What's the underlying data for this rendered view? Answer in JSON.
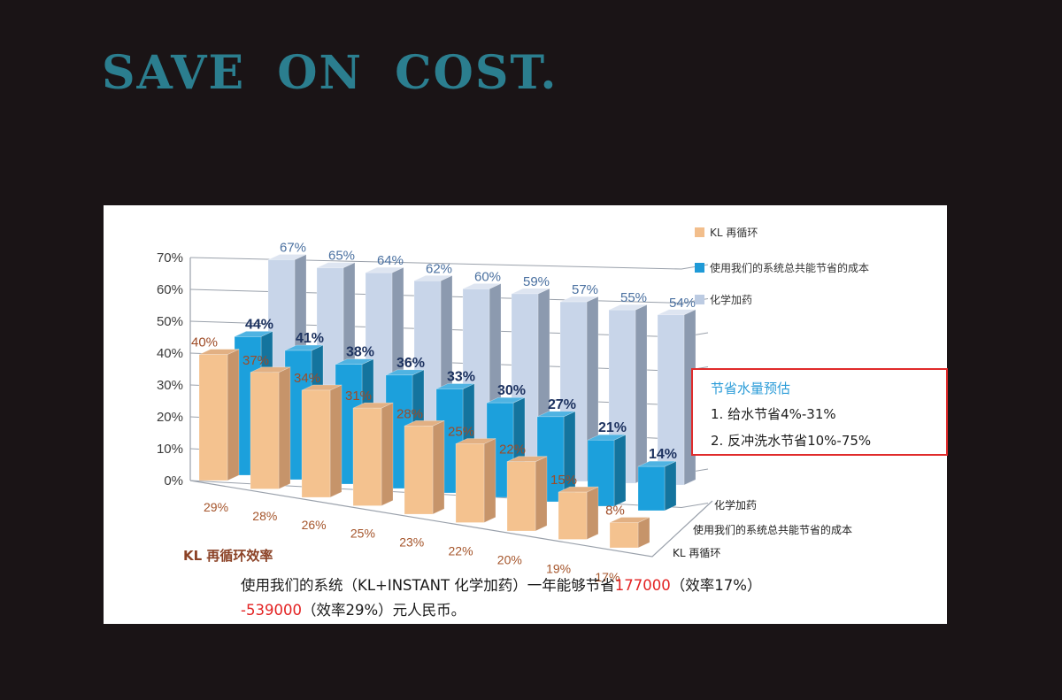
{
  "title": "SAVE ON COST.",
  "legend": {
    "items": [
      {
        "label": "KL 再循环",
        "color": "#F2BE8C"
      },
      {
        "label": "使用我们的系统总共能节省的成本",
        "color": "#1F9AD7"
      },
      {
        "label": "化学加药",
        "color": "#BCCBE2"
      }
    ]
  },
  "chart_data": {
    "type": "bar",
    "projection": "3d",
    "x_categories": [
      "29%",
      "28%",
      "26%",
      "25%",
      "23%",
      "22%",
      "20%",
      "19%",
      "17%"
    ],
    "x_axis_title": "KL 再循环效率",
    "y_ticks": [
      "70%",
      "60%",
      "50%",
      "40%",
      "30%",
      "20%",
      "10%",
      "0%"
    ],
    "ylim": [
      0,
      70
    ],
    "grid": true,
    "legend_position": "top-right",
    "series": [
      {
        "name": "KL 再循环",
        "values": [
          40,
          37,
          34,
          31,
          28,
          25,
          22,
          15,
          8
        ],
        "unit": "%",
        "color_front": "#F4C28F",
        "color_side": "#C6946A",
        "color_top": "#E2B083",
        "label_color": "#9E4B26",
        "label_bold": false
      },
      {
        "name": "使用我们的系统总共能节省的成本",
        "values": [
          44,
          41,
          38,
          36,
          33,
          30,
          27,
          21,
          14
        ],
        "unit": "%",
        "color_front": "#1CA0DC",
        "color_side": "#14749E",
        "color_top": "#4FB3E2",
        "label_color": "#1E3360",
        "label_bold": true
      },
      {
        "name": "化学加药",
        "values": [
          67,
          65,
          64,
          62,
          60,
          59,
          57,
          55,
          54
        ],
        "unit": "%",
        "color_front": "#C8D5E9",
        "color_side": "#8C9AAF",
        "color_top": "#DEE5F1",
        "label_color": "#4A70A0",
        "label_bold": false
      }
    ],
    "depth_axis_labels": [
      "化学加药",
      "使用我们的系统总共能节省的成本",
      "KL 再循环"
    ]
  },
  "annotation_box": {
    "title": "节省水量预估",
    "items": [
      "1. 给水节省4%-31%",
      "2. 反冲洗水节省10%-75%"
    ],
    "title_color": "#2B9CD8",
    "border_color": "#E02B2B"
  },
  "note": {
    "line1_pre": "使用我们的系统（KL+INSTANT 化学加药）一年能够节省",
    "line1_red": "177000",
    "line1_post": "（效率17%）",
    "line2_red": "-539000",
    "line2_post": "（效率29%）元人民币。",
    "red_color": "#E32222"
  },
  "colors": {
    "background": "#1A1416",
    "panel": "#FFFFFF",
    "title": "#2B7E8F",
    "grid": "#9AA1AB",
    "y_tick": "#3B3B3B",
    "x_tick": "#A5552B",
    "axis_title": "#8B4226"
  }
}
